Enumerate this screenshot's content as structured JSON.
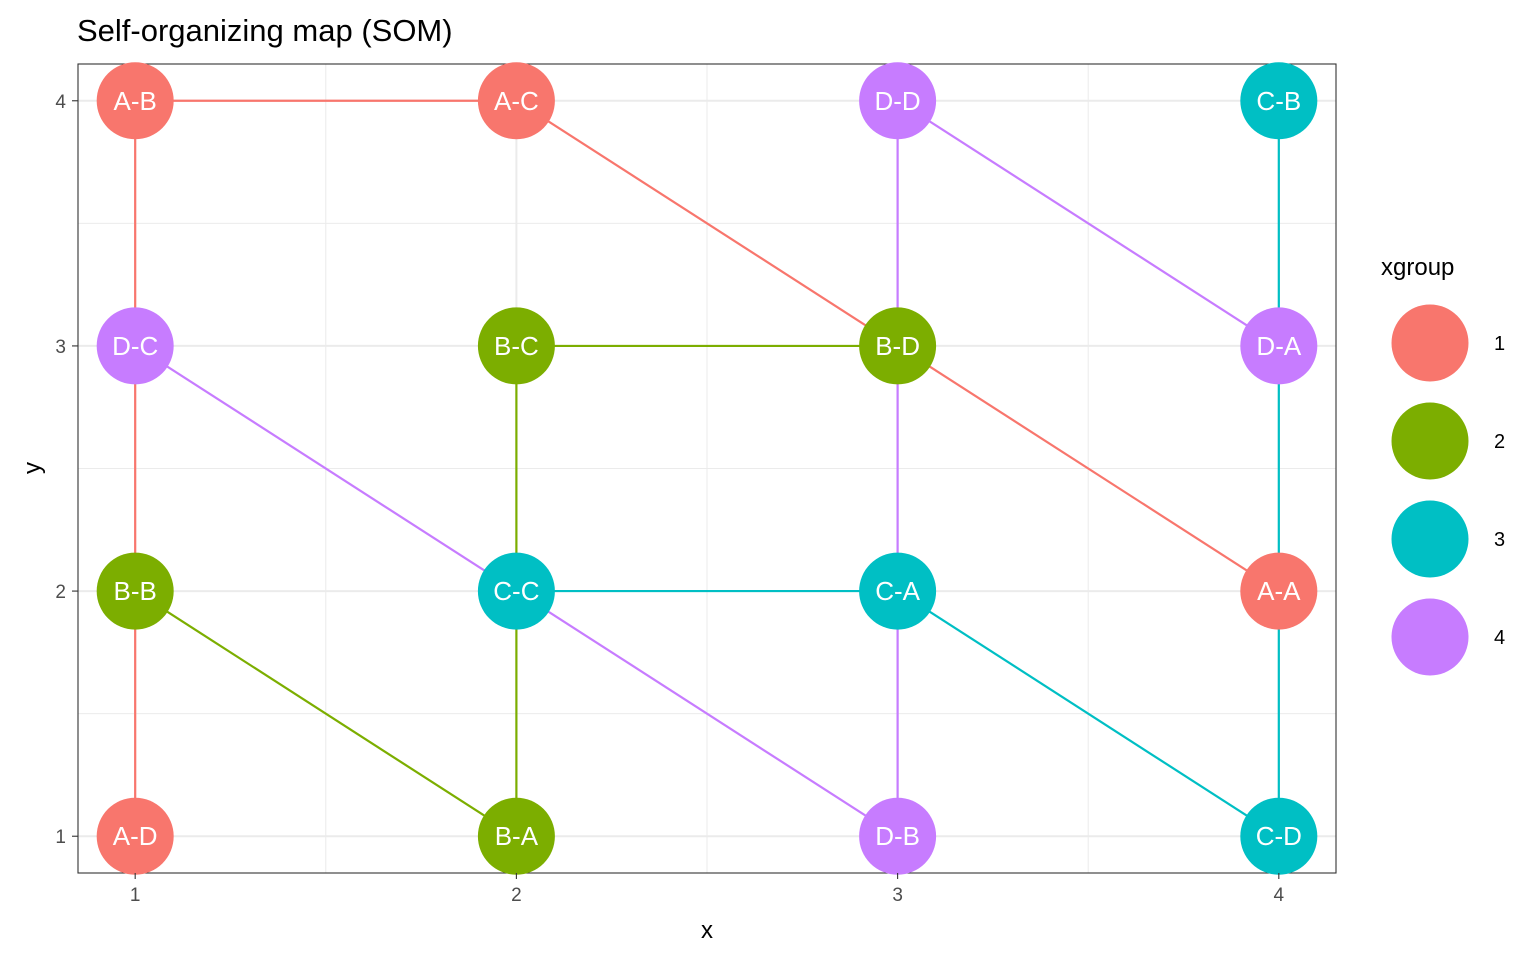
{
  "chart_data": {
    "type": "scatter",
    "title": "Self-organizing map (SOM)",
    "xlabel": "x",
    "ylabel": "y",
    "xlim": [
      0.85,
      4.15
    ],
    "ylim": [
      0.85,
      4.15
    ],
    "x_ticks": [
      1,
      2,
      3,
      4
    ],
    "y_ticks": [
      1,
      2,
      3,
      4
    ],
    "grid": true,
    "legend": {
      "title": "xgroup",
      "placement": "right",
      "entries": [
        {
          "label": "1",
          "color": "#F8766D"
        },
        {
          "label": "2",
          "color": "#7CAE00"
        },
        {
          "label": "3",
          "color": "#00BFC4"
        },
        {
          "label": "4",
          "color": "#C77CFF"
        }
      ]
    },
    "points": [
      {
        "label": "A-B",
        "x": 1,
        "y": 4,
        "group": "1"
      },
      {
        "label": "A-C",
        "x": 2,
        "y": 4,
        "group": "1"
      },
      {
        "label": "D-D",
        "x": 3,
        "y": 4,
        "group": "4"
      },
      {
        "label": "C-B",
        "x": 4,
        "y": 4,
        "group": "3"
      },
      {
        "label": "D-C",
        "x": 1,
        "y": 3,
        "group": "4"
      },
      {
        "label": "B-C",
        "x": 2,
        "y": 3,
        "group": "2"
      },
      {
        "label": "B-D",
        "x": 3,
        "y": 3,
        "group": "2"
      },
      {
        "label": "D-A",
        "x": 4,
        "y": 3,
        "group": "4"
      },
      {
        "label": "B-B",
        "x": 1,
        "y": 2,
        "group": "2"
      },
      {
        "label": "C-C",
        "x": 2,
        "y": 2,
        "group": "3"
      },
      {
        "label": "C-A",
        "x": 3,
        "y": 2,
        "group": "3"
      },
      {
        "label": "A-A",
        "x": 4,
        "y": 2,
        "group": "1"
      },
      {
        "label": "A-D",
        "x": 1,
        "y": 1,
        "group": "1"
      },
      {
        "label": "B-A",
        "x": 2,
        "y": 1,
        "group": "2"
      },
      {
        "label": "D-B",
        "x": 3,
        "y": 1,
        "group": "4"
      },
      {
        "label": "C-D",
        "x": 4,
        "y": 1,
        "group": "3"
      }
    ],
    "edges": [
      {
        "from": "A-D",
        "to": "B-B",
        "group": "1"
      },
      {
        "from": "B-B",
        "to": "D-C",
        "group": "1"
      },
      {
        "from": "D-C",
        "to": "A-B",
        "group": "1"
      },
      {
        "from": "A-B",
        "to": "A-C",
        "group": "1"
      },
      {
        "from": "A-C",
        "to": "B-D",
        "group": "1"
      },
      {
        "from": "B-D",
        "to": "A-A",
        "group": "1"
      },
      {
        "from": "B-B",
        "to": "B-A",
        "group": "2"
      },
      {
        "from": "B-A",
        "to": "C-C",
        "group": "2"
      },
      {
        "from": "C-C",
        "to": "B-C",
        "group": "2"
      },
      {
        "from": "B-C",
        "to": "B-D",
        "group": "2"
      },
      {
        "from": "C-C",
        "to": "C-A",
        "group": "3"
      },
      {
        "from": "C-A",
        "to": "C-D",
        "group": "3"
      },
      {
        "from": "C-D",
        "to": "A-A",
        "group": "3"
      },
      {
        "from": "A-A",
        "to": "D-A",
        "group": "3"
      },
      {
        "from": "D-A",
        "to": "C-B",
        "group": "3"
      },
      {
        "from": "D-C",
        "to": "C-C",
        "group": "4"
      },
      {
        "from": "C-C",
        "to": "D-B",
        "group": "4"
      },
      {
        "from": "D-B",
        "to": "C-A",
        "group": "4"
      },
      {
        "from": "C-A",
        "to": "B-D",
        "group": "4"
      },
      {
        "from": "B-D",
        "to": "D-D",
        "group": "4"
      },
      {
        "from": "D-D",
        "to": "D-A",
        "group": "4"
      }
    ]
  }
}
